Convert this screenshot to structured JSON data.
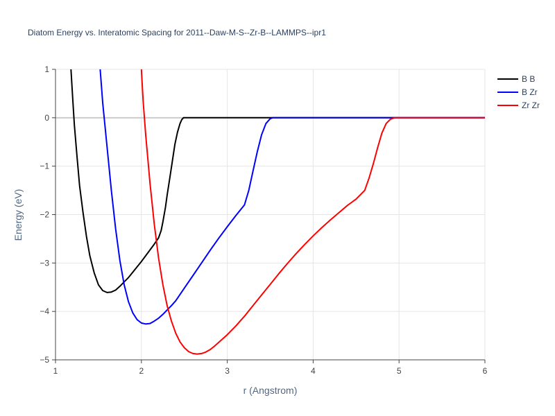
{
  "chart_data": {
    "type": "line",
    "title": "Diatom Energy vs. Interatomic Spacing for 2011--Daw-M-S--Zr-B--LAMMPS--ipr1",
    "xlabel": "r (Angstrom)",
    "ylabel": "Energy (eV)",
    "xlim": [
      1,
      6
    ],
    "ylim": [
      -5,
      1
    ],
    "xticks": [
      1,
      2,
      3,
      4,
      5,
      6
    ],
    "yticks": [
      -5,
      -4,
      -3,
      -2,
      -1,
      0,
      1
    ],
    "xtick_labels": [
      "1",
      "2",
      "3",
      "4",
      "5",
      "6"
    ],
    "ytick_labels": [
      "−5",
      "−4",
      "−3",
      "−2",
      "−1",
      "0",
      "1"
    ],
    "grid": true,
    "legend_position": "top-right",
    "series": [
      {
        "name": "B B",
        "color": "#000000",
        "x": [
          1.18,
          1.2,
          1.22,
          1.25,
          1.28,
          1.32,
          1.36,
          1.4,
          1.45,
          1.5,
          1.55,
          1.6,
          1.65,
          1.7,
          1.75,
          1.8,
          1.85,
          1.9,
          1.95,
          2.0,
          2.05,
          2.1,
          2.15,
          2.2,
          2.23,
          2.25,
          2.28,
          2.3,
          2.33,
          2.36,
          2.39,
          2.42,
          2.45,
          2.47,
          2.49,
          2.52,
          2.6,
          3.0,
          4.0,
          5.0,
          6.0
        ],
        "y": [
          1.0,
          0.4,
          -0.15,
          -0.8,
          -1.4,
          -1.95,
          -2.45,
          -2.85,
          -3.2,
          -3.45,
          -3.57,
          -3.61,
          -3.6,
          -3.56,
          -3.48,
          -3.39,
          -3.3,
          -3.19,
          -3.08,
          -2.97,
          -2.85,
          -2.73,
          -2.61,
          -2.48,
          -2.33,
          -2.15,
          -1.85,
          -1.6,
          -1.25,
          -0.9,
          -0.55,
          -0.3,
          -0.12,
          -0.04,
          0.0,
          0.0,
          0.0,
          0.0,
          0.0,
          0.0,
          0.0
        ]
      },
      {
        "name": "B Zr",
        "color": "#0000ff",
        "x": [
          1.52,
          1.55,
          1.6,
          1.65,
          1.7,
          1.75,
          1.8,
          1.85,
          1.9,
          1.95,
          2.0,
          2.05,
          2.1,
          2.15,
          2.2,
          2.25,
          2.3,
          2.35,
          2.4,
          2.5,
          2.6,
          2.7,
          2.8,
          2.9,
          3.0,
          3.1,
          3.2,
          3.25,
          3.3,
          3.35,
          3.4,
          3.45,
          3.5,
          3.53,
          3.56,
          3.6,
          4.0,
          5.0,
          6.0
        ],
        "y": [
          1.0,
          0.3,
          -0.6,
          -1.5,
          -2.3,
          -2.95,
          -3.45,
          -3.8,
          -4.03,
          -4.17,
          -4.24,
          -4.26,
          -4.25,
          -4.2,
          -4.14,
          -4.06,
          -3.97,
          -3.88,
          -3.78,
          -3.52,
          -3.26,
          -3.0,
          -2.74,
          -2.49,
          -2.25,
          -2.02,
          -1.8,
          -1.5,
          -1.1,
          -0.7,
          -0.35,
          -0.12,
          -0.02,
          0.0,
          0.0,
          0.0,
          0.0,
          0.0,
          0.0
        ]
      },
      {
        "name": "Zr Zr",
        "color": "#ff0000",
        "x": [
          2.0,
          2.02,
          2.05,
          2.1,
          2.15,
          2.2,
          2.25,
          2.3,
          2.35,
          2.4,
          2.45,
          2.5,
          2.55,
          2.6,
          2.65,
          2.7,
          2.75,
          2.8,
          2.85,
          2.9,
          3.0,
          3.1,
          3.2,
          3.3,
          3.4,
          3.5,
          3.6,
          3.7,
          3.8,
          3.9,
          4.0,
          4.1,
          4.2,
          4.3,
          4.4,
          4.5,
          4.6,
          4.65,
          4.7,
          4.75,
          4.8,
          4.85,
          4.9,
          4.95,
          5.0,
          5.05,
          6.0
        ],
        "y": [
          1.0,
          0.35,
          -0.35,
          -1.35,
          -2.2,
          -2.9,
          -3.45,
          -3.88,
          -4.2,
          -4.45,
          -4.63,
          -4.75,
          -4.83,
          -4.87,
          -4.88,
          -4.87,
          -4.84,
          -4.79,
          -4.72,
          -4.64,
          -4.48,
          -4.3,
          -4.1,
          -3.88,
          -3.66,
          -3.44,
          -3.22,
          -3.01,
          -2.81,
          -2.62,
          -2.44,
          -2.27,
          -2.11,
          -1.96,
          -1.81,
          -1.68,
          -1.5,
          -1.25,
          -0.95,
          -0.62,
          -0.32,
          -0.12,
          -0.03,
          0.0,
          0.0,
          0.0,
          0.0
        ]
      }
    ]
  }
}
